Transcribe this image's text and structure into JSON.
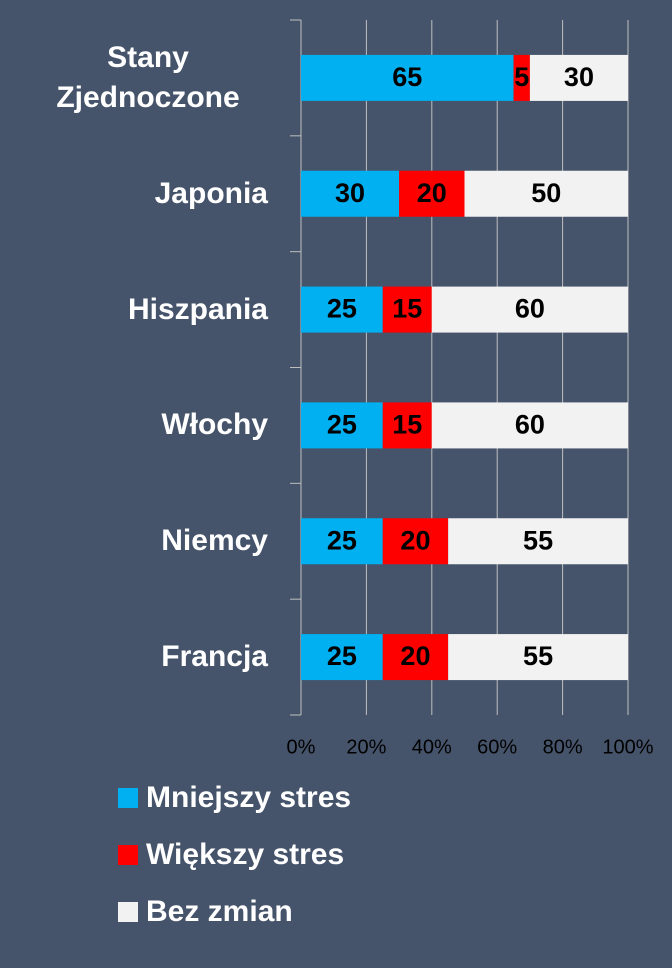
{
  "chart_data": {
    "type": "bar",
    "orientation": "horizontal",
    "stacked": true,
    "categories": [
      "Stany Zjednoczone",
      "Japonia",
      "Hiszpania",
      "Włochy",
      "Niemcy",
      "Francja"
    ],
    "series": [
      {
        "name": "Mniejszy stres",
        "color": "#00b0f0",
        "values": [
          65,
          30,
          25,
          25,
          25,
          25
        ]
      },
      {
        "name": "Większy stres",
        "color": "#ff0000",
        "values": [
          5,
          20,
          15,
          15,
          20,
          20
        ]
      },
      {
        "name": "Bez zmian",
        "color": "#f2f2f2",
        "values": [
          30,
          50,
          60,
          60,
          55,
          55
        ]
      }
    ],
    "xlim": [
      0,
      100
    ],
    "xticks": [
      {
        "value": 0,
        "label": "0%"
      },
      {
        "value": 20,
        "label": "20%"
      },
      {
        "value": 40,
        "label": "40%"
      },
      {
        "value": 60,
        "label": "60%"
      },
      {
        "value": 80,
        "label": "80%"
      },
      {
        "value": 100,
        "label": "100%"
      }
    ],
    "grid": true,
    "legend": "bottom"
  }
}
